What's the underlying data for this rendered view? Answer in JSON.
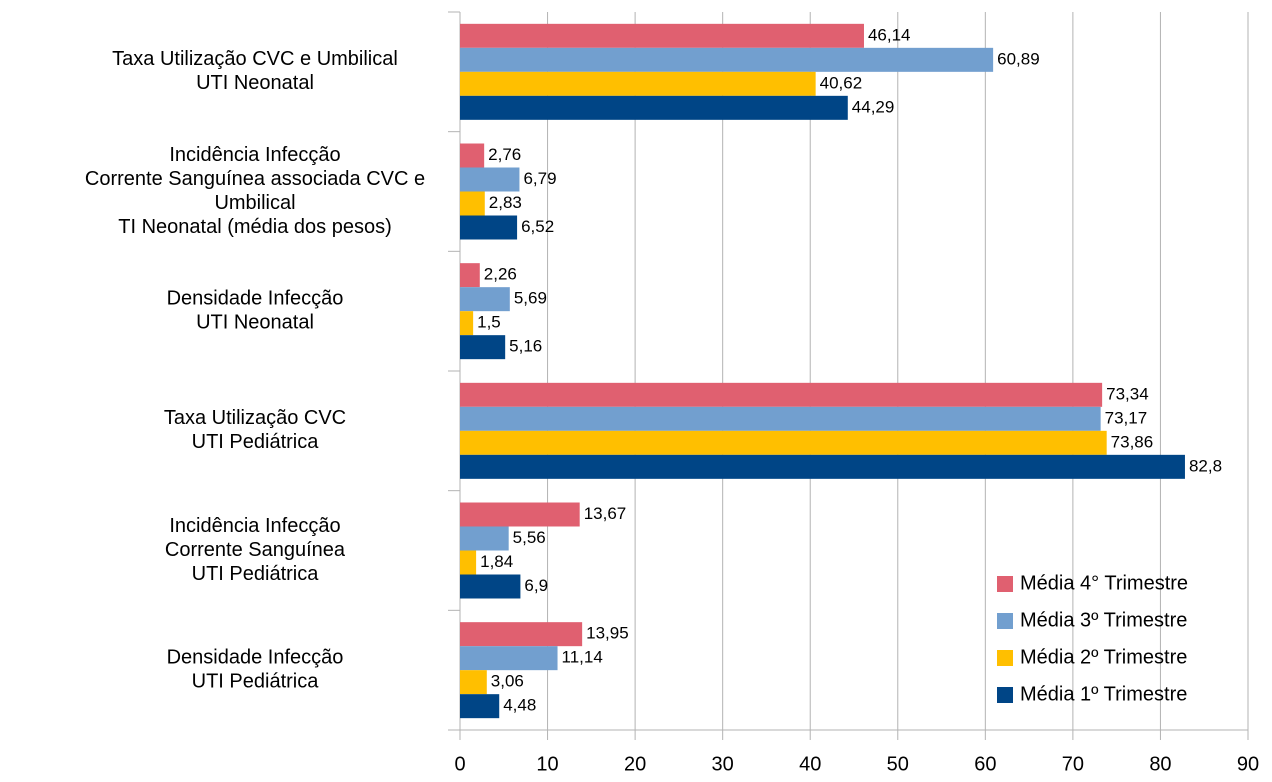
{
  "chart_data": {
    "type": "bar",
    "orientation": "horizontal",
    "categories": [
      [
        "Taxa Utilização CVC e Umbilical",
        "UTI Neonatal"
      ],
      [
        "Incidência Infecção",
        "Corrente Sanguínea associada CVC e",
        "Umbilical",
        "TI Neonatal (média dos pesos)"
      ],
      [
        "Densidade Infecção",
        "UTI Neonatal"
      ],
      [
        "Taxa Utilização CVC",
        "UTI Pediátrica"
      ],
      [
        "Incidência Infecção",
        "Corrente Sanguínea",
        "UTI Pediátrica"
      ],
      [
        "Densidade Infecção",
        "UTI Pediátrica"
      ]
    ],
    "series": [
      {
        "name": "Média 4° Trimestre",
        "color": "#e06070",
        "values": [
          46.14,
          2.76,
          2.26,
          73.34,
          13.67,
          13.95
        ],
        "value_labels": [
          "46,14",
          "2,76",
          "2,26",
          "73,34",
          "13,67",
          "13,95"
        ]
      },
      {
        "name": "Média 3º Trimestre",
        "color": "#729fcf",
        "values": [
          60.89,
          6.79,
          5.69,
          73.17,
          5.56,
          11.14
        ],
        "value_labels": [
          "60,89",
          "6,79",
          "5,69",
          "73,17",
          "5,56",
          "11,14"
        ]
      },
      {
        "name": "Média 2º Trimestre",
        "color": "#ffbf00",
        "values": [
          40.62,
          2.83,
          1.5,
          73.86,
          1.84,
          3.06
        ],
        "value_labels": [
          "40,62",
          "2,83",
          "1,5",
          "73,86",
          "1,84",
          "3,06"
        ]
      },
      {
        "name": "Média 1º Trimestre",
        "color": "#004586",
        "values": [
          44.29,
          6.52,
          5.16,
          82.8,
          6.9,
          4.48
        ],
        "value_labels": [
          "44,29",
          "6,52",
          "5,16",
          "82,8",
          "6,9",
          "4,48"
        ]
      }
    ],
    "xlim": [
      0,
      90
    ],
    "xticks": [
      0,
      10,
      20,
      30,
      40,
      50,
      60,
      70,
      80,
      90
    ],
    "grid": true,
    "legend": "lower right"
  }
}
